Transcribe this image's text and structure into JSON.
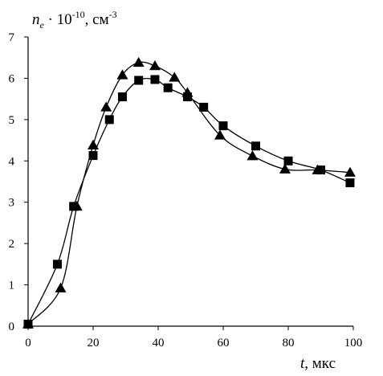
{
  "chart_data": {
    "type": "line",
    "title": "",
    "ylabel": {
      "symbol": "n",
      "subscript": "e",
      "factor": " · 10",
      "exponent": "-10",
      "unit": ", см",
      "unit_exponent": "-3"
    },
    "xlabel": {
      "symbol": "t",
      "unit": ", мкс"
    },
    "xlim": [
      0,
      100
    ],
    "ylim": [
      0,
      7
    ],
    "xticks": [
      0,
      20,
      40,
      60,
      80,
      100
    ],
    "yticks": [
      0,
      1,
      2,
      3,
      4,
      5,
      6,
      7
    ],
    "grid": false,
    "legend": "none",
    "series": [
      {
        "marker": "triangle",
        "color": "#000000",
        "x": [
          0,
          10,
          15,
          20,
          24,
          29,
          34,
          39,
          45,
          49,
          59,
          69,
          79,
          89,
          99
        ],
        "y": [
          0.05,
          0.92,
          2.9,
          4.38,
          5.3,
          6.08,
          6.38,
          6.3,
          6.02,
          5.65,
          4.62,
          4.12,
          3.8,
          3.78,
          3.72
        ]
      },
      {
        "marker": "square",
        "color": "#000000",
        "x": [
          0,
          9,
          14,
          20,
          25,
          29,
          34,
          39,
          43,
          49,
          54,
          60,
          70,
          80,
          90,
          99
        ],
        "y": [
          0.05,
          1.5,
          2.9,
          4.13,
          5.0,
          5.55,
          5.95,
          5.97,
          5.77,
          5.55,
          5.3,
          4.85,
          4.36,
          4.0,
          3.78,
          3.47
        ]
      }
    ]
  }
}
